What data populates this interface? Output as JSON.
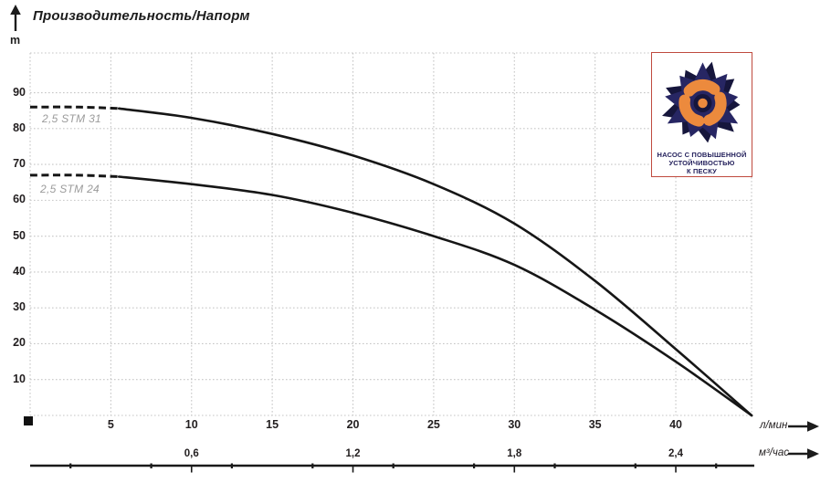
{
  "title": "Производительность/Напорм",
  "y_unit": "m",
  "colors": {
    "curve": "#161616",
    "grid": "#c6c6c6",
    "series_label": "#9b9b9b",
    "text": "#221e1f",
    "logo_navy": "#272663",
    "logo_navy_dark": "#16163c",
    "logo_orange": "#ec8a3d",
    "logo_border": "#bf4a3e"
  },
  "chart_data": {
    "type": "line",
    "title": "Производительность/Напорм",
    "ylabel": "m",
    "grid": true,
    "y_ticks": [
      10,
      20,
      30,
      40,
      50,
      60,
      70,
      80,
      90
    ],
    "ylim": [
      0,
      100
    ],
    "x_axes": [
      {
        "unit": "л/мин",
        "ticks": [
          5,
          10,
          15,
          20,
          25,
          30,
          35,
          40
        ],
        "lim": [
          0,
          44.7
        ]
      },
      {
        "unit": "м³/час",
        "tick_labels": [
          "0,6",
          "1,2",
          "1,8",
          "2,4"
        ],
        "tick_values": [
          0.6,
          1.2,
          1.8,
          2.4
        ],
        "lpm_per_m3h": 16.6667
      }
    ],
    "series": [
      {
        "name": "2,5 STM 31",
        "dashed_points": [
          [
            0,
            86
          ],
          [
            3,
            86
          ],
          [
            5.5,
            85.6
          ]
        ],
        "points": [
          [
            5.5,
            85.6
          ],
          [
            10,
            83
          ],
          [
            15,
            78.5
          ],
          [
            20,
            72.5
          ],
          [
            25,
            64.5
          ],
          [
            30,
            53.5
          ],
          [
            35,
            37.5
          ],
          [
            40,
            18.5
          ],
          [
            44.7,
            0
          ]
        ]
      },
      {
        "name": "2,5 STM 24",
        "dashed_points": [
          [
            0,
            67
          ],
          [
            3,
            67
          ],
          [
            5.5,
            66.6
          ]
        ],
        "points": [
          [
            5.5,
            66.6
          ],
          [
            10,
            64.5
          ],
          [
            15,
            61.5
          ],
          [
            20,
            56.5
          ],
          [
            25,
            50
          ],
          [
            30,
            42
          ],
          [
            35,
            29.5
          ],
          [
            40,
            15
          ],
          [
            44.7,
            0
          ]
        ]
      }
    ]
  },
  "logo": {
    "lines": [
      "НАСОС С ПОВЫШЕННОЙ",
      "УСТОЙЧИВОСТЬЮ",
      "К ПЕСКУ"
    ]
  }
}
